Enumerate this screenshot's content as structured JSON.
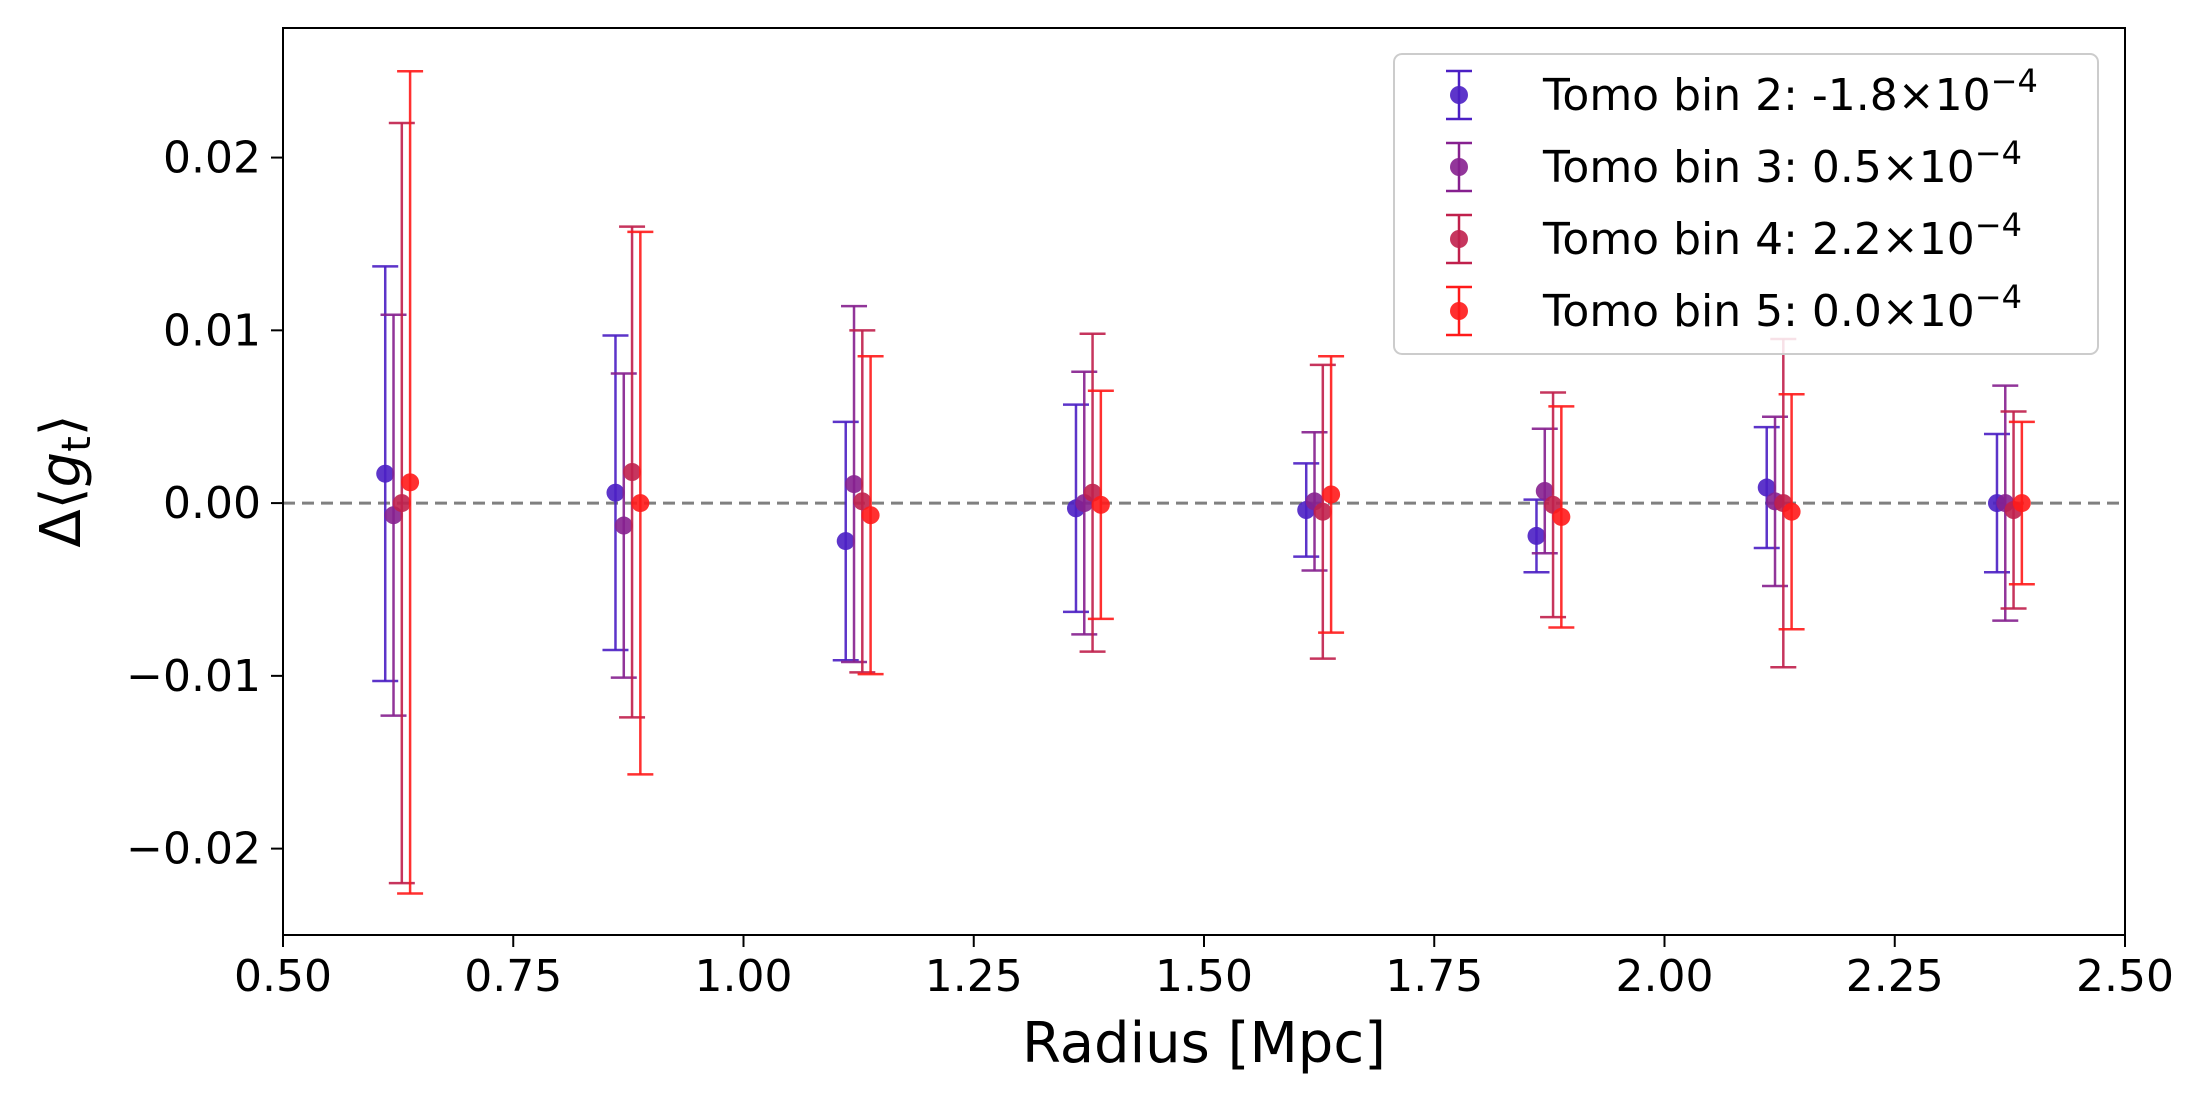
{
  "chart_data": {
    "type": "scatter",
    "title": "",
    "xlabel": "Radius [Mpc]",
    "ylabel_prefix": "Δ⟨",
    "ylabel_var": "g",
    "ylabel_sub": "t",
    "ylabel_suffix": "⟩",
    "xlim": [
      0.5,
      2.5
    ],
    "ylim": [
      -0.025,
      0.0275
    ],
    "x_ticks": [
      0.5,
      0.75,
      1.0,
      1.25,
      1.5,
      1.75,
      2.0,
      2.25,
      2.5
    ],
    "x_tick_labels": [
      "0.50",
      "0.75",
      "1.00",
      "1.25",
      "1.50",
      "1.75",
      "2.00",
      "2.25",
      "2.50"
    ],
    "y_ticks": [
      -0.02,
      -0.01,
      0.0,
      0.01,
      0.02
    ],
    "y_tick_labels": [
      "−0.02",
      "−0.01",
      "0.00",
      "0.01",
      "0.02"
    ],
    "reference_line": {
      "y": 0.0,
      "style": "dashed",
      "color": "#808080"
    },
    "legend_position": "top-right",
    "series": [
      {
        "name": "Tomo bin 2: -1.8×10",
        "exponent": "−4",
        "color": "#4b1fc4",
        "x": [
          0.611,
          0.861,
          1.111,
          1.361,
          1.611,
          1.861,
          2.111,
          2.361
        ],
        "y": [
          0.0017,
          0.0006,
          -0.0022,
          -0.0003,
          -0.0004,
          -0.0019,
          0.0009,
          0.0
        ],
        "err": [
          0.012,
          0.0091,
          0.0069,
          0.006,
          0.0027,
          0.0021,
          0.0035,
          0.004
        ]
      },
      {
        "name": "Tomo bin 3: 0.5×10",
        "exponent": "−4",
        "color": "#86208f",
        "x": [
          0.62,
          0.87,
          1.12,
          1.37,
          1.62,
          1.87,
          2.12,
          2.37
        ],
        "y": [
          -0.0007,
          -0.0013,
          0.0011,
          0.0,
          0.0001,
          0.0007,
          0.0001,
          0.0
        ],
        "err": [
          0.0116,
          0.0088,
          0.0103,
          0.0076,
          0.004,
          0.0036,
          0.0049,
          0.0068
        ]
      },
      {
        "name": "Tomo bin 4: 2.2×10",
        "exponent": "−4",
        "color": "#c0204c",
        "x": [
          0.629,
          0.879,
          1.129,
          1.379,
          1.629,
          1.879,
          2.129,
          2.379
        ],
        "y": [
          0.0,
          0.0018,
          0.0001,
          0.0006,
          -0.0005,
          -0.0001,
          0.0,
          -0.0004
        ],
        "err": [
          0.022,
          0.0142,
          0.0099,
          0.0092,
          0.0085,
          0.0065,
          0.0095,
          0.0057
        ]
      },
      {
        "name": "Tomo bin 5: 0.0×10",
        "exponent": "−4",
        "color": "#ff1a1a",
        "x": [
          0.638,
          0.888,
          1.138,
          1.388,
          1.638,
          1.888,
          2.138,
          2.388
        ],
        "y": [
          0.0012,
          0.0,
          -0.0007,
          -0.0001,
          0.0005,
          -0.0008,
          -0.0005,
          0.0
        ],
        "err": [
          0.0238,
          0.0157,
          0.0092,
          0.0066,
          0.008,
          0.0064,
          0.0068,
          0.0047
        ]
      }
    ]
  }
}
